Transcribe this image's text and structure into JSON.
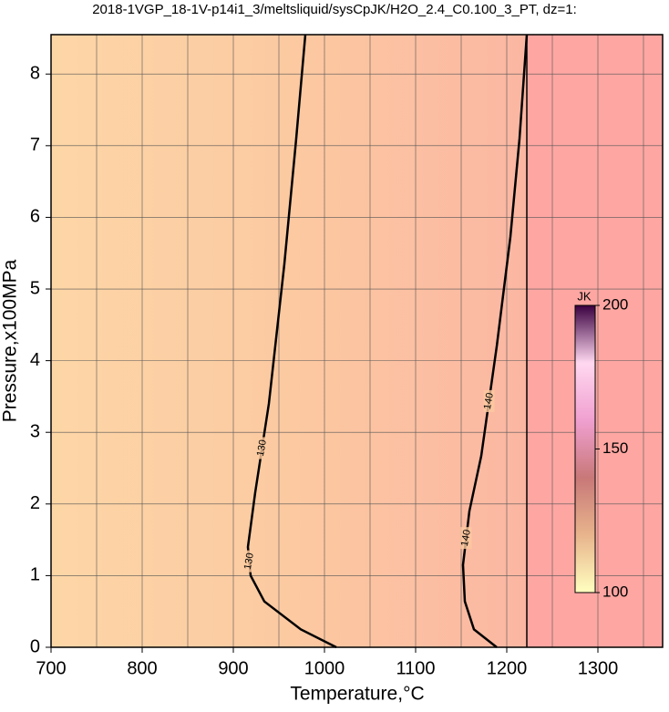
{
  "chart_data": {
    "type": "contour",
    "title": "2018-1VGP_18-1V-p14i1_3/meltsliquid/sysCpJK/H2O_2.4_C0.100_3_PT, dz=1:",
    "xlabel": "Temperature,°C",
    "ylabel": "Pressure,x100MPa",
    "xlim": [
      700,
      1371
    ],
    "ylim": [
      0,
      8.55
    ],
    "xticks": [
      700,
      800,
      900,
      1000,
      1100,
      1200,
      1300
    ],
    "xminorticks": [
      750,
      850,
      950,
      1050,
      1150,
      1250,
      1350
    ],
    "yticks": [
      0,
      1,
      2,
      3,
      4,
      5,
      6,
      7,
      8
    ],
    "grid": true,
    "series": [
      {
        "name": "130",
        "color": "#000000",
        "x": [
          1013,
          974,
          934,
          919,
          916,
          924,
          939,
          956,
          969,
          979
        ],
        "values": [
          0,
          0.25,
          0.64,
          1.0,
          1.4,
          2.16,
          3.4,
          5.35,
          7.1,
          8.55
        ]
      },
      {
        "name": "140",
        "color": "#000000",
        "x": [
          1189,
          1164,
          1154,
          1152,
          1159,
          1172,
          1189,
          1204,
          1214,
          1222
        ],
        "values": [
          0,
          0.25,
          0.64,
          1.15,
          1.9,
          2.67,
          4.2,
          5.73,
          7.1,
          8.55
        ]
      }
    ],
    "colorbar": {
      "label": "JK",
      "lim": [
        100,
        200
      ],
      "ticks": [
        100,
        150,
        200
      ],
      "colors": [
        "#ffffc0",
        "#e8b48c",
        "#c87878",
        "#f0a0d0",
        "#ffd8f0",
        "#3a0040"
      ]
    }
  }
}
